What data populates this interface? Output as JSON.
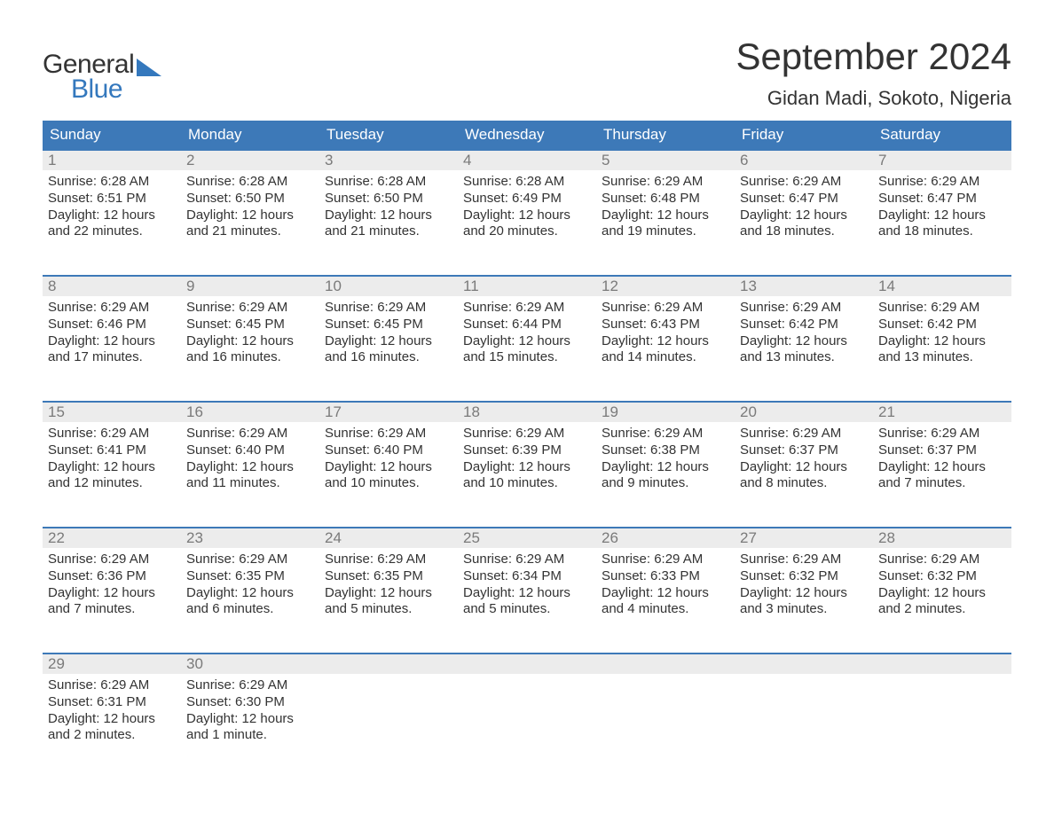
{
  "brand": {
    "word1": "General",
    "word2": "Blue",
    "accent_color": "#3478bd"
  },
  "title": "September 2024",
  "location": "Gidan Madi, Sokoto, Nigeria",
  "header_bg": "#3d79b8",
  "daynum_bg": "#ececec",
  "text_color": "#333333",
  "background_color": "#ffffff",
  "day_headers": [
    "Sunday",
    "Monday",
    "Tuesday",
    "Wednesday",
    "Thursday",
    "Friday",
    "Saturday"
  ],
  "weeks": [
    [
      {
        "n": "1",
        "sunrise": "Sunrise: 6:28 AM",
        "sunset": "Sunset: 6:51 PM",
        "dl1": "Daylight: 12 hours",
        "dl2": "and 22 minutes."
      },
      {
        "n": "2",
        "sunrise": "Sunrise: 6:28 AM",
        "sunset": "Sunset: 6:50 PM",
        "dl1": "Daylight: 12 hours",
        "dl2": "and 21 minutes."
      },
      {
        "n": "3",
        "sunrise": "Sunrise: 6:28 AM",
        "sunset": "Sunset: 6:50 PM",
        "dl1": "Daylight: 12 hours",
        "dl2": "and 21 minutes."
      },
      {
        "n": "4",
        "sunrise": "Sunrise: 6:28 AM",
        "sunset": "Sunset: 6:49 PM",
        "dl1": "Daylight: 12 hours",
        "dl2": "and 20 minutes."
      },
      {
        "n": "5",
        "sunrise": "Sunrise: 6:29 AM",
        "sunset": "Sunset: 6:48 PM",
        "dl1": "Daylight: 12 hours",
        "dl2": "and 19 minutes."
      },
      {
        "n": "6",
        "sunrise": "Sunrise: 6:29 AM",
        "sunset": "Sunset: 6:47 PM",
        "dl1": "Daylight: 12 hours",
        "dl2": "and 18 minutes."
      },
      {
        "n": "7",
        "sunrise": "Sunrise: 6:29 AM",
        "sunset": "Sunset: 6:47 PM",
        "dl1": "Daylight: 12 hours",
        "dl2": "and 18 minutes."
      }
    ],
    [
      {
        "n": "8",
        "sunrise": "Sunrise: 6:29 AM",
        "sunset": "Sunset: 6:46 PM",
        "dl1": "Daylight: 12 hours",
        "dl2": "and 17 minutes."
      },
      {
        "n": "9",
        "sunrise": "Sunrise: 6:29 AM",
        "sunset": "Sunset: 6:45 PM",
        "dl1": "Daylight: 12 hours",
        "dl2": "and 16 minutes."
      },
      {
        "n": "10",
        "sunrise": "Sunrise: 6:29 AM",
        "sunset": "Sunset: 6:45 PM",
        "dl1": "Daylight: 12 hours",
        "dl2": "and 16 minutes."
      },
      {
        "n": "11",
        "sunrise": "Sunrise: 6:29 AM",
        "sunset": "Sunset: 6:44 PM",
        "dl1": "Daylight: 12 hours",
        "dl2": "and 15 minutes."
      },
      {
        "n": "12",
        "sunrise": "Sunrise: 6:29 AM",
        "sunset": "Sunset: 6:43 PM",
        "dl1": "Daylight: 12 hours",
        "dl2": "and 14 minutes."
      },
      {
        "n": "13",
        "sunrise": "Sunrise: 6:29 AM",
        "sunset": "Sunset: 6:42 PM",
        "dl1": "Daylight: 12 hours",
        "dl2": "and 13 minutes."
      },
      {
        "n": "14",
        "sunrise": "Sunrise: 6:29 AM",
        "sunset": "Sunset: 6:42 PM",
        "dl1": "Daylight: 12 hours",
        "dl2": "and 13 minutes."
      }
    ],
    [
      {
        "n": "15",
        "sunrise": "Sunrise: 6:29 AM",
        "sunset": "Sunset: 6:41 PM",
        "dl1": "Daylight: 12 hours",
        "dl2": "and 12 minutes."
      },
      {
        "n": "16",
        "sunrise": "Sunrise: 6:29 AM",
        "sunset": "Sunset: 6:40 PM",
        "dl1": "Daylight: 12 hours",
        "dl2": "and 11 minutes."
      },
      {
        "n": "17",
        "sunrise": "Sunrise: 6:29 AM",
        "sunset": "Sunset: 6:40 PM",
        "dl1": "Daylight: 12 hours",
        "dl2": "and 10 minutes."
      },
      {
        "n": "18",
        "sunrise": "Sunrise: 6:29 AM",
        "sunset": "Sunset: 6:39 PM",
        "dl1": "Daylight: 12 hours",
        "dl2": "and 10 minutes."
      },
      {
        "n": "19",
        "sunrise": "Sunrise: 6:29 AM",
        "sunset": "Sunset: 6:38 PM",
        "dl1": "Daylight: 12 hours",
        "dl2": "and 9 minutes."
      },
      {
        "n": "20",
        "sunrise": "Sunrise: 6:29 AM",
        "sunset": "Sunset: 6:37 PM",
        "dl1": "Daylight: 12 hours",
        "dl2": "and 8 minutes."
      },
      {
        "n": "21",
        "sunrise": "Sunrise: 6:29 AM",
        "sunset": "Sunset: 6:37 PM",
        "dl1": "Daylight: 12 hours",
        "dl2": "and 7 minutes."
      }
    ],
    [
      {
        "n": "22",
        "sunrise": "Sunrise: 6:29 AM",
        "sunset": "Sunset: 6:36 PM",
        "dl1": "Daylight: 12 hours",
        "dl2": "and 7 minutes."
      },
      {
        "n": "23",
        "sunrise": "Sunrise: 6:29 AM",
        "sunset": "Sunset: 6:35 PM",
        "dl1": "Daylight: 12 hours",
        "dl2": "and 6 minutes."
      },
      {
        "n": "24",
        "sunrise": "Sunrise: 6:29 AM",
        "sunset": "Sunset: 6:35 PM",
        "dl1": "Daylight: 12 hours",
        "dl2": "and 5 minutes."
      },
      {
        "n": "25",
        "sunrise": "Sunrise: 6:29 AM",
        "sunset": "Sunset: 6:34 PM",
        "dl1": "Daylight: 12 hours",
        "dl2": "and 5 minutes."
      },
      {
        "n": "26",
        "sunrise": "Sunrise: 6:29 AM",
        "sunset": "Sunset: 6:33 PM",
        "dl1": "Daylight: 12 hours",
        "dl2": "and 4 minutes."
      },
      {
        "n": "27",
        "sunrise": "Sunrise: 6:29 AM",
        "sunset": "Sunset: 6:32 PM",
        "dl1": "Daylight: 12 hours",
        "dl2": "and 3 minutes."
      },
      {
        "n": "28",
        "sunrise": "Sunrise: 6:29 AM",
        "sunset": "Sunset: 6:32 PM",
        "dl1": "Daylight: 12 hours",
        "dl2": "and 2 minutes."
      }
    ],
    [
      {
        "n": "29",
        "sunrise": "Sunrise: 6:29 AM",
        "sunset": "Sunset: 6:31 PM",
        "dl1": "Daylight: 12 hours",
        "dl2": "and 2 minutes."
      },
      {
        "n": "30",
        "sunrise": "Sunrise: 6:29 AM",
        "sunset": "Sunset: 6:30 PM",
        "dl1": "Daylight: 12 hours",
        "dl2": "and 1 minute."
      },
      {
        "empty": true
      },
      {
        "empty": true
      },
      {
        "empty": true
      },
      {
        "empty": true
      },
      {
        "empty": true
      }
    ]
  ]
}
